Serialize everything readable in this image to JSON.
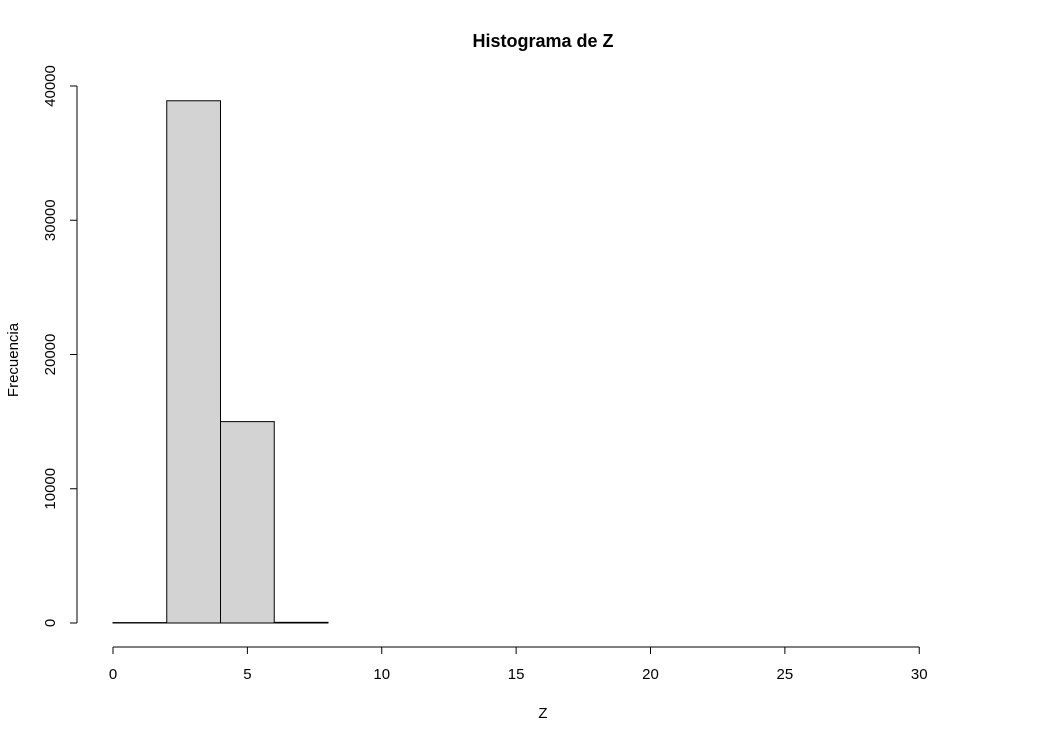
{
  "chart_data": {
    "type": "bar",
    "subtype": "histogram",
    "title": "Histograma de Z",
    "xlabel": "Z",
    "ylabel": "Frecuencia",
    "bins": [
      {
        "start": 0,
        "end": 2,
        "count": 30
      },
      {
        "start": 2,
        "end": 4,
        "count": 38900
      },
      {
        "start": 4,
        "end": 6,
        "count": 15000
      },
      {
        "start": 6,
        "end": 8,
        "count": 50
      },
      {
        "start": 8,
        "end": 10,
        "count": 0
      },
      {
        "start": 10,
        "end": 12,
        "count": 0
      },
      {
        "start": 12,
        "end": 14,
        "count": 0
      },
      {
        "start": 14,
        "end": 16,
        "count": 0
      },
      {
        "start": 16,
        "end": 18,
        "count": 0
      },
      {
        "start": 18,
        "end": 20,
        "count": 0
      },
      {
        "start": 20,
        "end": 22,
        "count": 0
      },
      {
        "start": 22,
        "end": 24,
        "count": 0
      },
      {
        "start": 24,
        "end": 26,
        "count": 0
      },
      {
        "start": 26,
        "end": 28,
        "count": 0
      },
      {
        "start": 28,
        "end": 30,
        "count": 0
      },
      {
        "start": 30,
        "end": 32,
        "count": 0
      }
    ],
    "xlim": [
      0,
      32
    ],
    "ylim": [
      0,
      40000
    ],
    "xticks": [
      0,
      5,
      10,
      15,
      20,
      25,
      30
    ],
    "xtick_labels": [
      "0",
      "5",
      "10",
      "15",
      "20",
      "25",
      "30"
    ],
    "yticks": [
      0,
      10000,
      20000,
      30000,
      40000
    ],
    "ytick_labels": [
      "0",
      "10000",
      "20000",
      "30000",
      "40000"
    ],
    "bar_fill": "#d3d3d3",
    "bar_stroke": "#000000",
    "grid": false,
    "legend": "none"
  }
}
